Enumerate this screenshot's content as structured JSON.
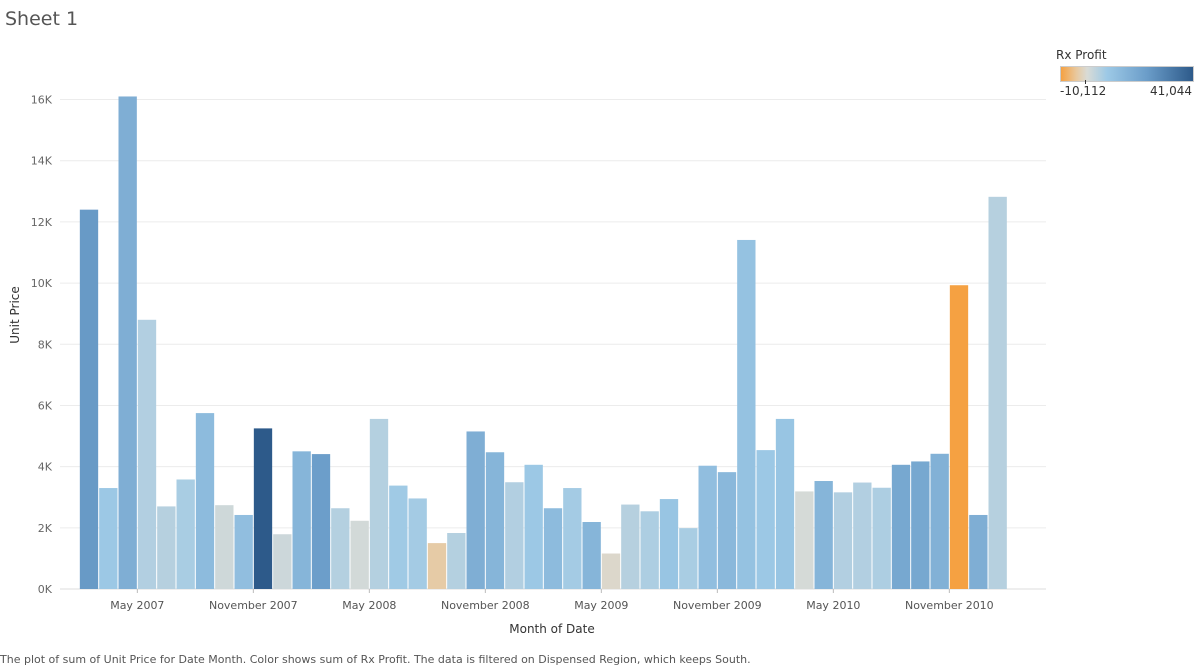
{
  "sheet": {
    "title": "Sheet 1",
    "caption": "The plot of sum of Unit Price for Date Month.  Color shows sum of Rx Profit. The data is filtered on Dispensed Region, which keeps South."
  },
  "legend": {
    "title": "Rx Profit",
    "min_label": "-10,112",
    "max_label": "41,044",
    "min": -10112,
    "max": 41044,
    "colors": [
      "#f5a142",
      "#e8c9a0",
      "#d9dbd6",
      "#9dc9e6",
      "#6b9dc9",
      "#2d5a8a"
    ]
  },
  "chart_data": {
    "type": "bar",
    "title": "",
    "xlabel": "Month of Date",
    "ylabel": "Unit Price",
    "ylim": [
      0,
      16900
    ],
    "yticks": [
      {
        "value": 0,
        "label": "0K"
      },
      {
        "value": 2000,
        "label": "2K"
      },
      {
        "value": 4000,
        "label": "4K"
      },
      {
        "value": 6000,
        "label": "6K"
      },
      {
        "value": 8000,
        "label": "8K"
      },
      {
        "value": 10000,
        "label": "10K"
      },
      {
        "value": 12000,
        "label": "12K"
      },
      {
        "value": 14000,
        "label": "14K"
      },
      {
        "value": 16000,
        "label": "16K"
      }
    ],
    "xticks": [
      {
        "index": 2.5,
        "label": "May 2007"
      },
      {
        "index": 8.5,
        "label": "November 2007"
      },
      {
        "index": 14.5,
        "label": "May 2008"
      },
      {
        "index": 20.5,
        "label": "November 2008"
      },
      {
        "index": 26.5,
        "label": "May 2009"
      },
      {
        "index": 32.5,
        "label": "November 2009"
      },
      {
        "index": 38.5,
        "label": "May 2010"
      },
      {
        "index": 44.5,
        "label": "November 2010"
      }
    ],
    "grid": true,
    "x_first_index": -1,
    "x_last_index": 49,
    "categories": [
      "2007-01",
      "2007-02",
      "2007-03",
      "2007-04",
      "2007-05",
      "2007-06",
      "2007-07",
      "2007-08",
      "2007-09",
      "2007-10",
      "2007-11",
      "2007-12",
      "2008-01",
      "2008-02",
      "2008-03",
      "2008-04",
      "2008-05",
      "2008-06",
      "2008-07",
      "2008-08",
      "2008-09",
      "2008-10",
      "2008-11",
      "2008-12",
      "2009-01",
      "2009-02",
      "2009-03",
      "2009-04",
      "2009-05",
      "2009-06",
      "2009-07",
      "2009-08",
      "2009-09",
      "2009-10",
      "2009-11",
      "2009-12",
      "2010-01",
      "2010-02",
      "2010-03",
      "2010-04",
      "2010-05",
      "2010-06",
      "2010-07",
      "2010-08",
      "2010-09",
      "2010-10",
      "2010-11",
      "2010-12"
    ],
    "values": [
      12400,
      3300,
      16100,
      8800,
      2700,
      3580,
      5750,
      2740,
      2420,
      5250,
      1790,
      4500,
      4410,
      2640,
      2230,
      5560,
      3380,
      2960,
      1500,
      1830,
      5150,
      4470,
      3490,
      4060,
      2640,
      3300,
      2190,
      1160,
      2760,
      2540,
      2940,
      1990,
      4030,
      3820,
      11410,
      4540,
      5560,
      3190,
      3530,
      3160,
      3480,
      3310,
      4060,
      4170,
      4420,
      9930,
      2420,
      12820
    ],
    "color_values": [
      28000,
      14000,
      22000,
      9000,
      8000,
      11000,
      18000,
      2500,
      17000,
      41044,
      3000,
      20000,
      27000,
      8500,
      1500,
      8500,
      13000,
      12000,
      -4500,
      8500,
      22000,
      20000,
      9000,
      14000,
      18000,
      12000,
      20000,
      -1000,
      8000,
      10000,
      15000,
      11000,
      17000,
      19000,
      16000,
      14000,
      15000,
      1000,
      20000,
      9000,
      9000,
      10000,
      24000,
      24000,
      21000,
      -10112,
      22000,
      8000
    ]
  }
}
